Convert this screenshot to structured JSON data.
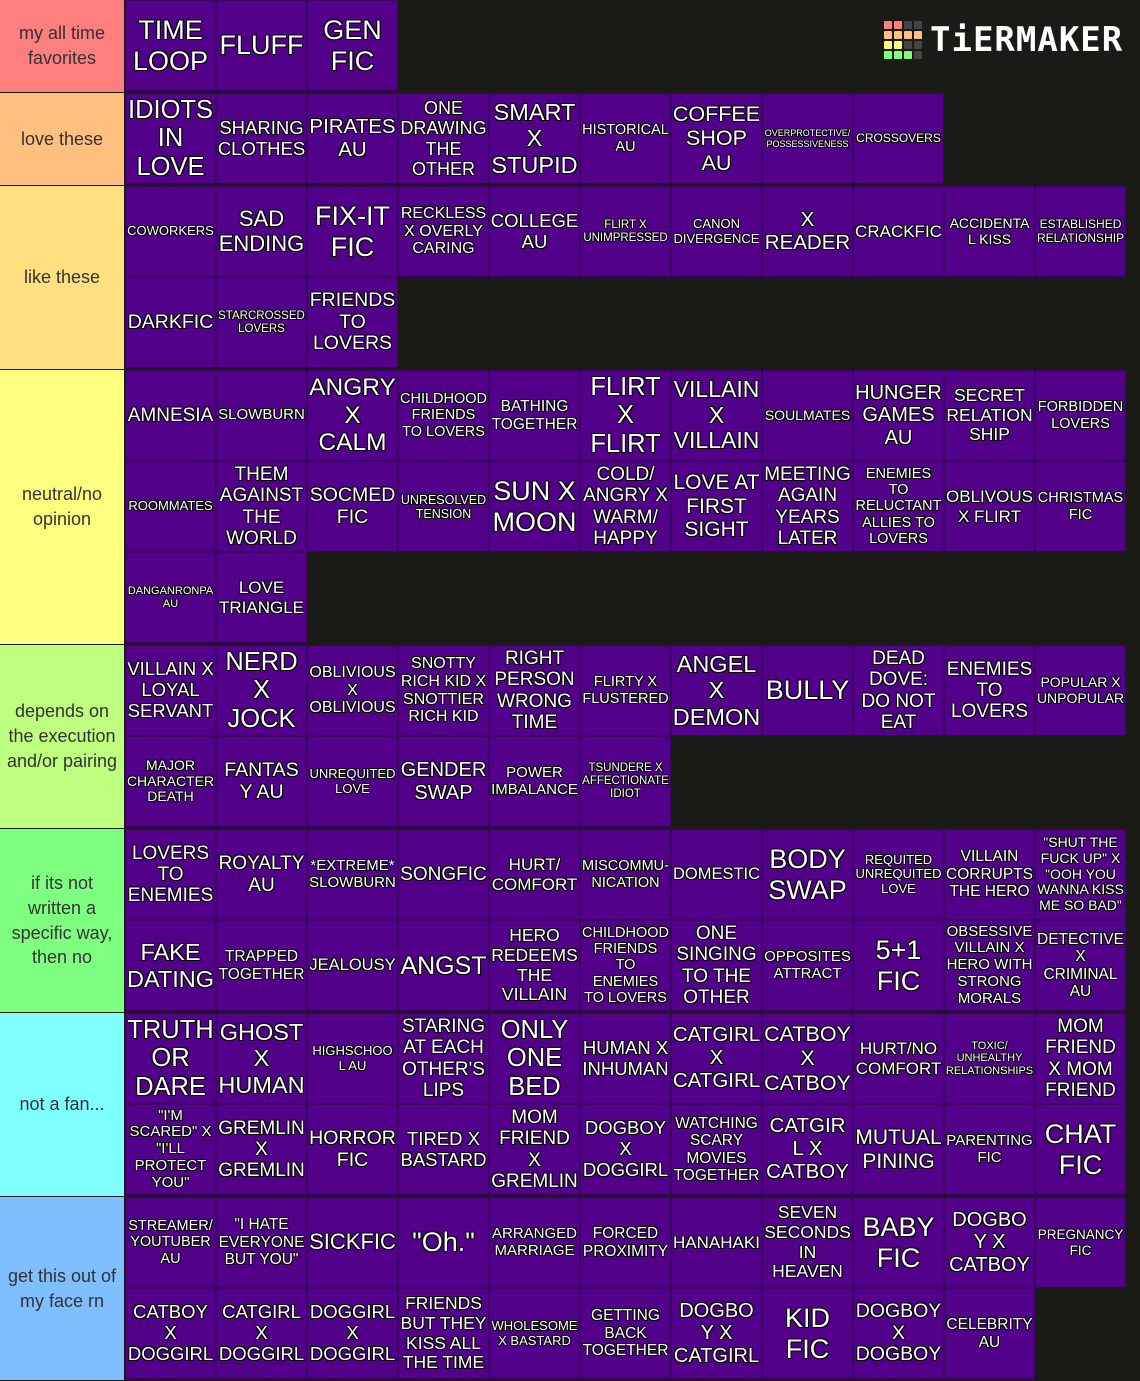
{
  "logo": {
    "text": "TiERMAKER",
    "grid_colors": [
      "#ff7f7f",
      "#ff7f7f",
      "#444444",
      "#444444",
      "#ffbf7f",
      "#ffbf7f",
      "#ffbf7f",
      "#ffbf7f",
      "#ffff7f",
      "#ffff7f",
      "#444444",
      "#444444",
      "#7fff7f",
      "#7fff7f",
      "#7fff7f",
      "#444444"
    ]
  },
  "colors": {
    "item_bg": "#52008a",
    "board_bg": "#1a1a17"
  },
  "tiers": [
    {
      "label": "my all time favorites",
      "color": "#ff7f7f",
      "items": [
        "TIME LOOP",
        "FLUFF",
        "GEN FIC"
      ]
    },
    {
      "label": "love these",
      "color": "#ffbf7f",
      "items": [
        "IDIOTS IN LOVE",
        "SHARING CLOTHES",
        "PIRATES AU",
        "ONE DRAWING THE OTHER",
        "SMART X STUPID",
        "HISTORICAL AU",
        "COFFEE SHOP AU",
        "OVERPROTECTIVE/ POSSESSIVENESS",
        "CROSSOVERS"
      ]
    },
    {
      "label": "like these",
      "color": "#ffdf7f",
      "items": [
        "COWORKERS",
        "SAD ENDING",
        "FIX-IT FIC",
        "RECKLESS X OVERLY CARING",
        "COLLEGE AU",
        "FLIRT X UNIMPRESSED",
        "CANON DIVERGENCE",
        "X READER",
        "CRACKFIC",
        "ACCIDENTAL KISS",
        "ESTABLISHED RELATIONSHIP",
        "DARKFIC",
        "STARCROSSED LOVERS",
        "FRIENDS TO LOVERS"
      ]
    },
    {
      "label": "neutral/no opinion",
      "color": "#ffff7f",
      "items": [
        "AMNESIA",
        "SLOWBURN",
        "ANGRY X CALM",
        "CHILDHOOD FRIENDS TO LOVERS",
        "BATHING TOGETHER",
        "FLIRT X FLIRT",
        "VILLAIN X VILLAIN",
        "SOULMATES",
        "HUNGER GAMES AU",
        "SECRET RELATION SHIP",
        "FORBIDDEN LOVERS",
        "ROOMMATES",
        "THEM AGAINST THE WORLD",
        "SOCMED FIC",
        "UNRESOLVED TENSION",
        "SUN X MOON",
        "COLD/ ANGRY X WARM/ HAPPY",
        "LOVE AT FIRST SIGHT",
        "MEETING AGAIN YEARS LATER",
        "ENEMIES TO RELUCTANT ALLIES TO LOVERS",
        "OBLIVOUS X FLIRT",
        "CHRISTMAS FIC",
        "DANGANRONPA AU",
        "LOVE TRIANGLE"
      ]
    },
    {
      "label": "depends on the execution and/or pairing",
      "color": "#bfff7f",
      "items": [
        "VILLAIN X LOYAL SERVANT",
        "NERD X JOCK",
        "OBLIVIOUS X OBLIVIOUS",
        "SNOTTY RICH KID X SNOTTIER RICH KID",
        "RIGHT PERSON WRONG TIME",
        "FLIRTY X FLUSTERED",
        "ANGEL X DEMON",
        "BULLY",
        "DEAD DOVE: DO NOT EAT",
        "ENEMIES TO LOVERS",
        "POPULAR X UNPOPULAR",
        "MAJOR CHARACTER DEATH",
        "FANTASY AU",
        "UNREQUITED LOVE",
        "GENDER SWAP",
        "POWER IMBALANCE",
        "TSUNDERE X AFFECTIONATE IDIOT"
      ]
    },
    {
      "label": "if its not written a specific way, then no",
      "color": "#7fff7f",
      "items": [
        "LOVERS TO ENEMIES",
        "ROYALTY AU",
        "*EXTREME* SLOWBURN",
        "SONGFIC",
        "HURT/ COMFORT",
        "MISCOMMU- NICATION",
        "DOMESTIC",
        "BODY SWAP",
        "REQUITED UNREQUITED LOVE",
        "VILLAIN CORRUPTS THE HERO",
        "\"SHUT THE FUCK UP\" X \"OOH YOU WANNA KISS ME SO BAD\"",
        "FAKE DATING",
        "TRAPPED TOGETHER",
        "JEALOUSY",
        "ANGST",
        "HERO REDEEMS THE VILLAIN",
        "CHILDHOOD FRIENDS TO ENEMIES TO LOVERS",
        "ONE SINGING TO THE OTHER",
        "OPPOSITES ATTRACT",
        "5+1 FIC",
        "OBSESSIVE VILLAIN X HERO WITH STRONG MORALS",
        "DETECTIVE X CRIMINAL AU"
      ]
    },
    {
      "label": "not a fan...",
      "color": "#7fffff",
      "items": [
        "TRUTH OR DARE",
        "GHOST X HUMAN",
        "HIGHSCHOOL AU",
        "STARING AT EACH OTHER'S LIPS",
        "ONLY ONE BED",
        "HUMAN X INHUMAN",
        "CATGIRL X CATGIRL",
        "CATBOY X CATBOY",
        "HURT/NO COMFORT",
        "TOXIC/ UNHEALTHY RELATIONSHIPS",
        "MOM FRIEND X MOM FRIEND",
        "\"I'M SCARED\" X \"I'LL PROTECT YOU\"",
        "GREMLIN X GREMLIN",
        "HORROR FIC",
        "TIRED X BASTARD",
        "MOM FRIEND X GREMLIN",
        "DOGBOY X DOGGIRL",
        "WATCHING SCARY MOVIES TOGETHER",
        "CATGIRL X CATBOY",
        "MUTUAL PINING",
        "PARENTING FIC",
        "CHAT FIC"
      ]
    },
    {
      "label": "get this out of my face rn",
      "color": "#7fbfff",
      "items": [
        "STREAMER/ YOUTUBER AU",
        "\"I HATE EVERYONE BUT YOU\"",
        "SICKFIC",
        "\"Oh.\"",
        "ARRANGED MARRIAGE",
        "FORCED PROXIMITY",
        "HANAHAKI",
        "SEVEN SECONDS IN HEAVEN",
        "BABY FIC",
        "DOGBOY X CATBOY",
        "PREGNANCY FIC",
        "CATBOY X DOGGIRL",
        "CATGIRL X DOGGIRL",
        "DOGGIRL X DOGGIRL",
        "FRIENDS BUT THEY KISS ALL THE TIME",
        "WHOLESOME X BASTARD",
        "GETTING BACK TOGETHER",
        "DOGBOY X CATGIRL",
        "KID FIC",
        "DOGBOY X DOGBOY",
        "CELEBRITY AU"
      ]
    }
  ]
}
